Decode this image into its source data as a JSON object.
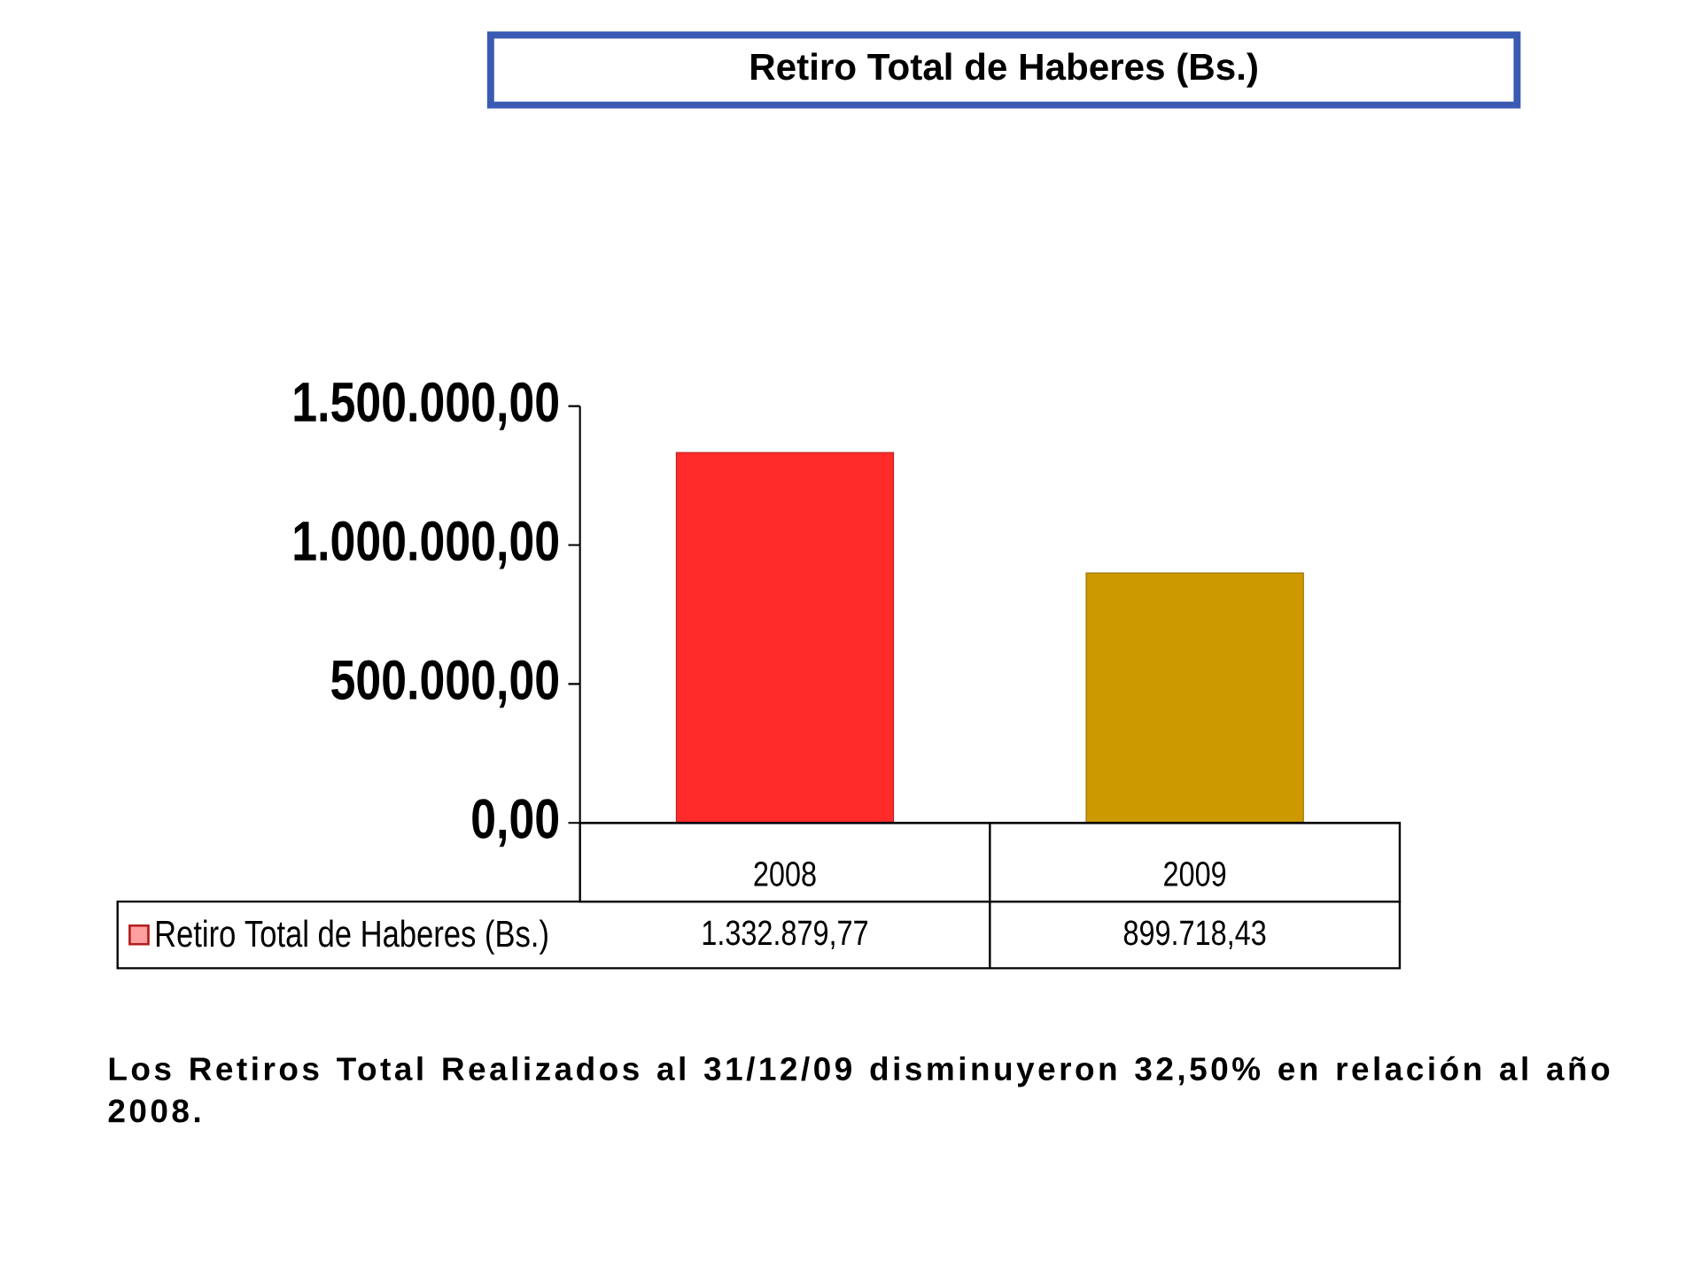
{
  "chart_data": {
    "type": "bar",
    "title": "Retiro Total de Haberes (Bs.)",
    "categories": [
      "2008",
      "2009"
    ],
    "series": [
      {
        "name": "Retiro Total de Haberes (Bs.)",
        "colors": [
          "#ff2a2a",
          "#cc9900"
        ],
        "values": [
          1332879.77,
          899718.43
        ],
        "value_labels": [
          "1.332.879,77",
          "899.718,43"
        ]
      }
    ],
    "ylim": [
      0,
      1500000
    ],
    "yticks": [
      {
        "value": 0,
        "label": "0,00"
      },
      {
        "value": 500000,
        "label": "500.000,00"
      },
      {
        "value": 1000000,
        "label": "1.000.000,00"
      },
      {
        "value": 1500000,
        "label": "1.500.000,00"
      }
    ],
    "legend": "bottom",
    "annotations": [
      "Los Retiros Total Realizados al 31/12/09 disminuyeron 32,50% en relación al año 2008."
    ]
  }
}
